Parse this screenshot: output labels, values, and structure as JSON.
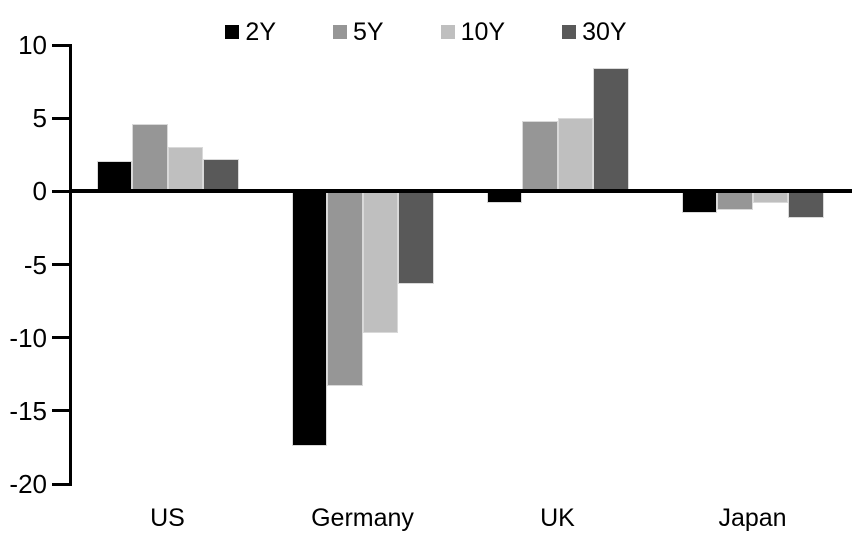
{
  "chart_data": {
    "type": "bar",
    "title": "",
    "xlabel": "",
    "ylabel": "",
    "categories": [
      "US",
      "Germany",
      "UK",
      "Japan"
    ],
    "series": [
      {
        "name": "2Y",
        "color": "#000000",
        "values": [
          2.1,
          -17.4,
          -0.8,
          -1.5
        ]
      },
      {
        "name": "5Y",
        "color": "#969696",
        "values": [
          4.6,
          -13.3,
          4.8,
          -1.3
        ]
      },
      {
        "name": "10Y",
        "color": "#bfbfbf",
        "values": [
          3.0,
          -9.7,
          5.0,
          -0.8
        ]
      },
      {
        "name": "30Y",
        "color": "#595959",
        "values": [
          2.2,
          -6.3,
          8.4,
          -1.8
        ]
      }
    ],
    "ylim": [
      -20,
      10
    ],
    "yticks": [
      10,
      5,
      0,
      -5,
      -10,
      -15,
      -20
    ],
    "ytick_labels": [
      "10",
      "5",
      "0",
      "-5",
      "-10",
      "-15",
      "-20"
    ],
    "grid": false,
    "legend_position": "top",
    "axis_color": "#000000",
    "background_color": "#ffffff",
    "bar_border_color": "#d9d9d9"
  }
}
